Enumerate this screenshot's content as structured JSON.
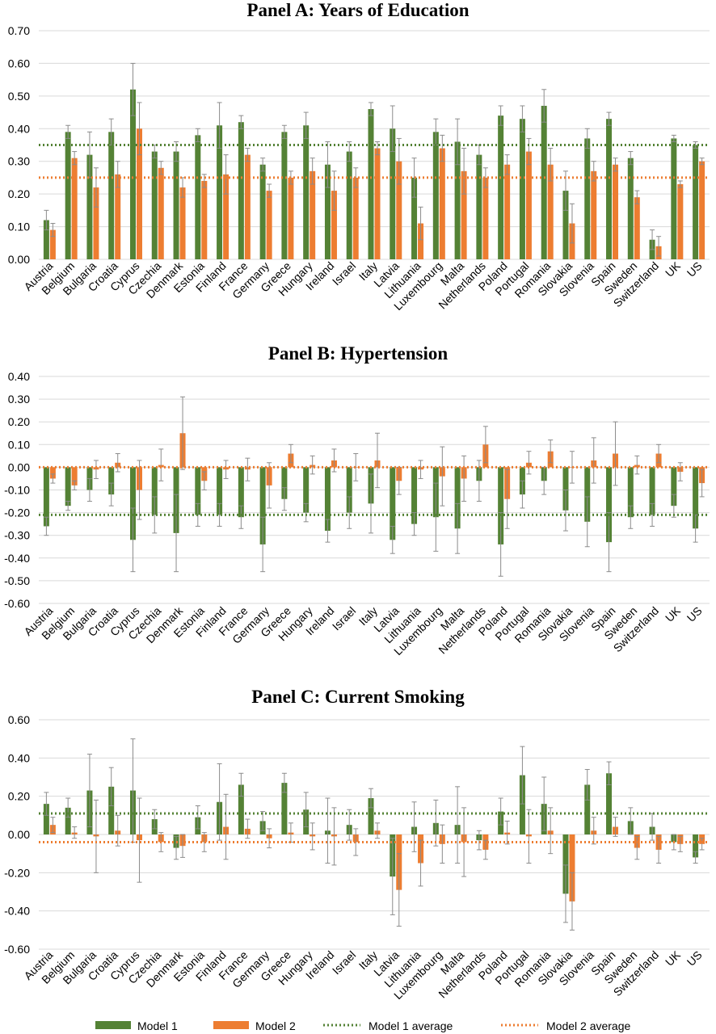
{
  "colors": {
    "model1": "#548235",
    "model2": "#ED7D31",
    "grid": "#D9D9D9",
    "errorbar": "#8C8C8C"
  },
  "legend": {
    "model1": "Model 1",
    "model2": "Model 2",
    "model1_avg": "Model 1 average",
    "model2_avg": "Model 2 average"
  },
  "chart_data": [
    {
      "type": "bar",
      "title": "Panel A: Years of Education",
      "ylim": [
        0,
        0.7
      ],
      "yticks": [
        "0.00",
        "0.10",
        "0.20",
        "0.30",
        "0.40",
        "0.50",
        "0.60",
        "0.70"
      ],
      "categories": [
        "Austria",
        "Belgium",
        "Bulgaria",
        "Croatia",
        "Cyprus",
        "Czechia",
        "Denmark",
        "Estonia",
        "Finland",
        "France",
        "Germany",
        "Greece",
        "Hungary",
        "Ireland",
        "Israel",
        "Italy",
        "Latvia",
        "Lithuania",
        "Luxembourg",
        "Malta",
        "Netherlands",
        "Poland",
        "Portugal",
        "Romania",
        "Slovakia",
        "Slovenia",
        "Spain",
        "Sweden",
        "Switzerland",
        "UK",
        "US"
      ],
      "series": [
        {
          "name": "Model 1",
          "values": [
            0.12,
            0.39,
            0.32,
            0.39,
            0.52,
            0.33,
            0.33,
            0.38,
            0.41,
            0.42,
            0.29,
            0.39,
            0.41,
            0.29,
            0.33,
            0.46,
            0.4,
            0.25,
            0.39,
            0.36,
            0.32,
            0.44,
            0.43,
            0.47,
            0.21,
            0.37,
            0.43,
            0.31,
            0.06,
            0.37,
            0.35
          ],
          "error": [
            0.03,
            0.02,
            0.07,
            0.04,
            0.08,
            0.02,
            0.03,
            0.02,
            0.07,
            0.02,
            0.02,
            0.02,
            0.04,
            0.07,
            0.03,
            0.02,
            0.07,
            0.06,
            0.04,
            0.07,
            0.03,
            0.03,
            0.04,
            0.05,
            0.06,
            0.03,
            0.02,
            0.02,
            0.03,
            0.01,
            0.01
          ]
        },
        {
          "name": "Model 2",
          "values": [
            0.09,
            0.31,
            0.22,
            0.26,
            0.4,
            0.28,
            0.22,
            0.24,
            0.26,
            0.32,
            0.21,
            0.25,
            0.27,
            0.21,
            0.25,
            0.34,
            0.3,
            0.11,
            0.34,
            0.27,
            0.25,
            0.29,
            0.33,
            0.29,
            0.11,
            0.27,
            0.29,
            0.19,
            0.04,
            0.23,
            0.3
          ],
          "error": [
            0.02,
            0.02,
            0.06,
            0.04,
            0.08,
            0.02,
            0.03,
            0.02,
            0.06,
            0.02,
            0.02,
            0.02,
            0.04,
            0.06,
            0.03,
            0.02,
            0.07,
            0.05,
            0.04,
            0.07,
            0.03,
            0.03,
            0.04,
            0.05,
            0.06,
            0.03,
            0.02,
            0.02,
            0.03,
            0.01,
            0.01
          ]
        }
      ],
      "averages": {
        "model1": 0.35,
        "model2": 0.25
      }
    },
    {
      "type": "bar",
      "title": "Panel B: Hypertension",
      "ylim": [
        -0.6,
        0.4
      ],
      "yticks": [
        "-0.60",
        "-0.50",
        "-0.40",
        "-0.30",
        "-0.20",
        "-0.10",
        "0.00",
        "0.10",
        "0.20",
        "0.30",
        "0.40"
      ],
      "categories": [
        "Austria",
        "Belgium",
        "Bulgaria",
        "Croatia",
        "Cyprus",
        "Czechia",
        "Denmark",
        "Estonia",
        "Finland",
        "France",
        "Germany",
        "Greece",
        "Hungary",
        "Ireland",
        "Israel",
        "Italy",
        "Latvia",
        "Lithuania",
        "Luxembourg",
        "Malta",
        "Netherlands",
        "Poland",
        "Portugal",
        "Romania",
        "Slovakia",
        "Slovenia",
        "Spain",
        "Sweden",
        "Switzerland",
        "UK",
        "US"
      ],
      "series": [
        {
          "name": "Model 1",
          "values": [
            -0.26,
            -0.17,
            -0.1,
            -0.12,
            -0.32,
            -0.21,
            -0.29,
            -0.21,
            -0.21,
            -0.22,
            -0.34,
            -0.14,
            -0.2,
            -0.28,
            -0.2,
            -0.16,
            -0.32,
            -0.25,
            -0.22,
            -0.27,
            -0.06,
            -0.34,
            -0.12,
            -0.06,
            -0.19,
            -0.24,
            -0.33,
            -0.22,
            -0.21,
            -0.17,
            -0.27
          ],
          "error": [
            0.04,
            0.02,
            0.05,
            0.05,
            0.14,
            0.08,
            0.17,
            0.05,
            0.05,
            0.05,
            0.12,
            0.05,
            0.04,
            0.05,
            0.07,
            0.13,
            0.06,
            0.05,
            0.15,
            0.11,
            0.09,
            0.14,
            0.06,
            0.06,
            0.09,
            0.11,
            0.13,
            0.05,
            0.05,
            0.05,
            0.06
          ]
        },
        {
          "name": "Model 2",
          "values": [
            -0.05,
            -0.08,
            -0.01,
            0.02,
            -0.1,
            0.01,
            0.15,
            -0.06,
            -0.01,
            -0.01,
            -0.08,
            0.06,
            0.01,
            0.03,
            0.0,
            0.03,
            -0.06,
            -0.01,
            -0.04,
            -0.05,
            0.1,
            -0.14,
            0.02,
            0.07,
            0.0,
            0.03,
            0.06,
            0.01,
            0.06,
            -0.02,
            -0.07
          ],
          "error": [
            0.02,
            0.02,
            0.04,
            0.04,
            0.13,
            0.07,
            0.16,
            0.04,
            0.04,
            0.05,
            0.1,
            0.04,
            0.04,
            0.05,
            0.06,
            0.12,
            0.06,
            0.04,
            0.13,
            0.1,
            0.08,
            0.13,
            0.05,
            0.05,
            0.07,
            0.1,
            0.14,
            0.04,
            0.04,
            0.04,
            0.06
          ]
        }
      ],
      "averages": {
        "model1": -0.21,
        "model2": 0.0
      }
    },
    {
      "type": "bar",
      "title": "Panel C: Current Smoking",
      "ylim": [
        -0.6,
        0.6
      ],
      "yticks": [
        "-0.60",
        "-0.40",
        "-0.20",
        "0.00",
        "0.20",
        "0.40",
        "0.60"
      ],
      "categories": [
        "Austria",
        "Belgium",
        "Bulgaria",
        "Croatia",
        "Cyprus",
        "Czechia",
        "Denmark",
        "Estonia",
        "Finland",
        "France",
        "Germany",
        "Greece",
        "Hungary",
        "Ireland",
        "Israel",
        "Italy",
        "Latvia",
        "Lithuania",
        "Luxembourg",
        "Malta",
        "Netherlands",
        "Poland",
        "Portugal",
        "Romania",
        "Slovakia",
        "Slovenia",
        "Spain",
        "Sweden",
        "Switzerland",
        "UK",
        "US"
      ],
      "series": [
        {
          "name": "Model 1",
          "values": [
            0.16,
            0.14,
            0.23,
            0.25,
            0.23,
            0.08,
            -0.07,
            0.09,
            0.17,
            0.26,
            0.07,
            0.27,
            0.13,
            0.02,
            0.05,
            0.19,
            -0.22,
            0.04,
            0.06,
            0.05,
            -0.03,
            0.12,
            0.31,
            0.16,
            -0.31,
            0.26,
            0.32,
            0.07,
            0.04,
            -0.04,
            -0.12
          ],
          "error": [
            0.06,
            0.05,
            0.19,
            0.1,
            0.27,
            0.05,
            0.06,
            0.06,
            0.2,
            0.06,
            0.05,
            0.05,
            0.09,
            0.17,
            0.08,
            0.05,
            0.2,
            0.13,
            0.12,
            0.2,
            0.05,
            0.07,
            0.15,
            0.14,
            0.15,
            0.08,
            0.06,
            0.07,
            0.07,
            0.04,
            0.03
          ]
        },
        {
          "name": "Model 2",
          "values": [
            0.05,
            0.01,
            -0.01,
            0.02,
            -0.03,
            -0.04,
            -0.06,
            -0.04,
            0.04,
            0.03,
            -0.02,
            0.01,
            -0.01,
            -0.01,
            -0.04,
            0.02,
            -0.29,
            -0.15,
            -0.05,
            -0.04,
            -0.08,
            0.01,
            -0.01,
            0.02,
            -0.35,
            0.02,
            0.04,
            -0.07,
            -0.08,
            -0.05,
            -0.05
          ],
          "error": [
            0.04,
            0.03,
            0.19,
            0.08,
            0.22,
            0.05,
            0.06,
            0.05,
            0.17,
            0.05,
            0.05,
            0.05,
            0.07,
            0.15,
            0.07,
            0.04,
            0.19,
            0.12,
            0.1,
            0.18,
            0.05,
            0.06,
            0.14,
            0.12,
            0.15,
            0.07,
            0.05,
            0.06,
            0.07,
            0.04,
            0.03
          ]
        }
      ],
      "averages": {
        "model1": 0.11,
        "model2": -0.04
      }
    }
  ]
}
